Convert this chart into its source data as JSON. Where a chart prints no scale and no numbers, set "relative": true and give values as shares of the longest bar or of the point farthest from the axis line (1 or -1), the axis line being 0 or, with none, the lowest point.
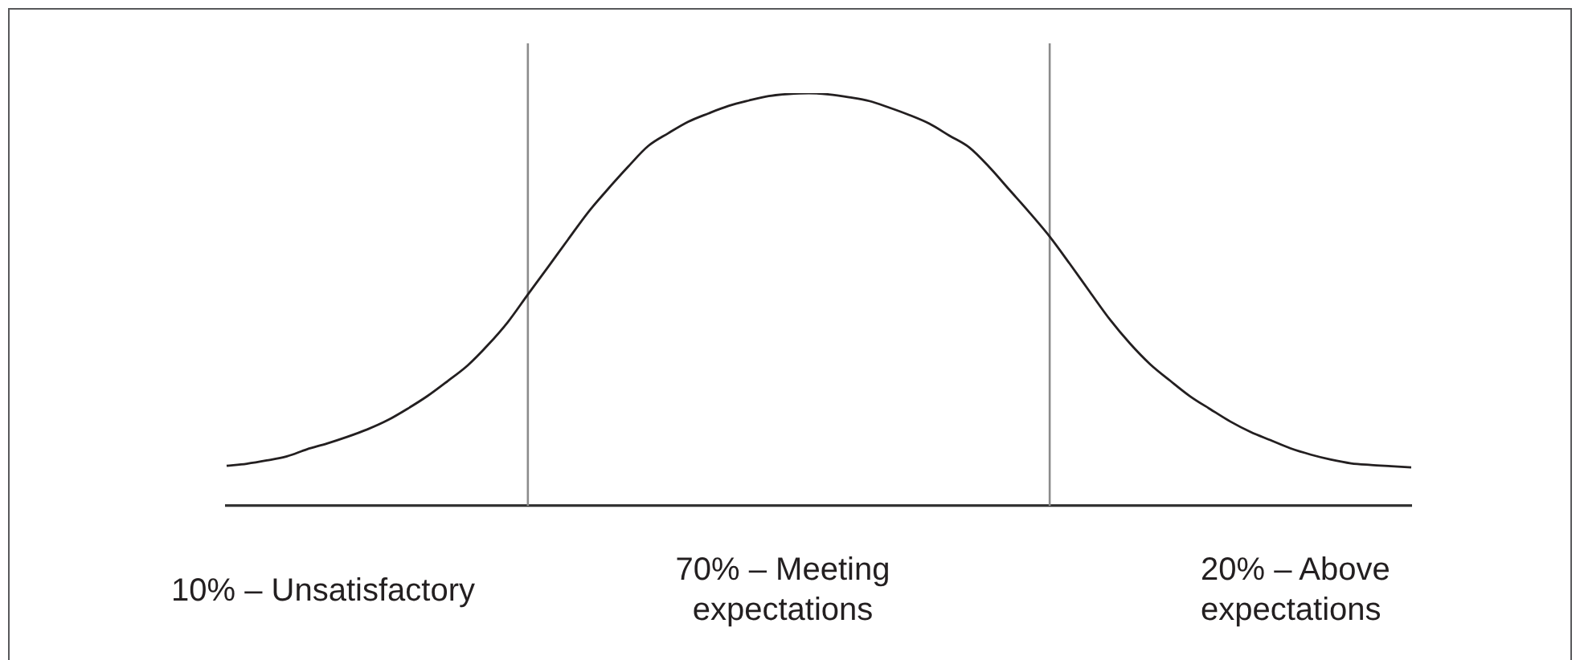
{
  "chart_data": {
    "type": "line",
    "relative": true,
    "categories": [
      null,
      null,
      null,
      null,
      null,
      null,
      null,
      null,
      null,
      null,
      null,
      null,
      null,
      null,
      null,
      null,
      null,
      null,
      null,
      null,
      null,
      null,
      null,
      null,
      null,
      null,
      null,
      null,
      null,
      null,
      null,
      null,
      null,
      null,
      null,
      null,
      null,
      null,
      null,
      null,
      null,
      null,
      null,
      null,
      null,
      null,
      null,
      null,
      null,
      null,
      null,
      null,
      null,
      null,
      null,
      null,
      null,
      null,
      null,
      null
    ],
    "series": [
      {
        "color": "#231f20",
        "values": [
          0.097,
          0.102,
          0.11,
          0.12,
          0.137,
          0.151,
          0.167,
          0.185,
          0.207,
          0.235,
          0.266,
          0.302,
          0.34,
          0.389,
          0.445,
          0.512,
          0.578,
          0.645,
          0.711,
          0.768,
          0.822,
          0.872,
          0.903,
          0.931,
          0.951,
          0.969,
          0.982,
          0.993,
          0.998,
          1,
          0.997,
          0.99,
          0.981,
          0.965,
          0.947,
          0.926,
          0.897,
          0.868,
          0.82,
          0.765,
          0.71,
          0.652,
          0.586,
          0.518,
          0.451,
          0.393,
          0.343,
          0.303,
          0.265,
          0.234,
          0.204,
          0.179,
          0.159,
          0.139,
          0.124,
          0.112,
          0.103,
          0.099,
          0.096,
          0.093
        ]
      }
    ],
    "annotations": [
      "10% – Unsatisfactory",
      "70% – Meeting expectations",
      "20% – Above expectations"
    ]
  }
}
